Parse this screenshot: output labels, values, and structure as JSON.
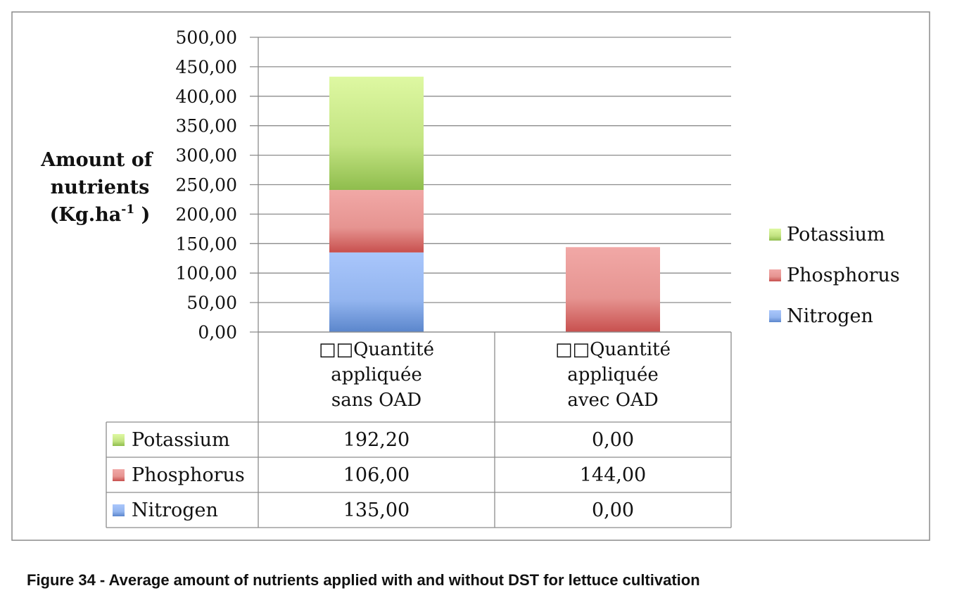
{
  "chart_data": {
    "type": "bar",
    "stacked": true,
    "ylabel_lines": [
      "Amount of",
      "nutrients",
      "(Kg.ha"
    ],
    "ylabel_sup": "-1",
    "ylabel_close": " )",
    "ylim": [
      0,
      500
    ],
    "yticks": [
      "0,00",
      "50,00",
      "100,00",
      "150,00",
      "200,00",
      "250,00",
      "300,00",
      "350,00",
      "400,00",
      "450,00",
      "500,00"
    ],
    "grid": true,
    "legend_position": "right",
    "categories": [
      [
        "□□Quantité",
        "appliquée",
        "sans OAD"
      ],
      [
        "□□Quantité",
        "appliquée",
        "avec OAD"
      ]
    ],
    "series": [
      {
        "name": "Nitrogen",
        "values": [
          135.0,
          0.0
        ],
        "value_labels": [
          "135,00",
          "0,00"
        ],
        "color": "#8fb4f0"
      },
      {
        "name": "Phosphorus",
        "values": [
          106.0,
          144.0
        ],
        "value_labels": [
          "106,00",
          "144,00"
        ],
        "color": "#ec9a98"
      },
      {
        "name": "Potassium",
        "values": [
          192.2,
          0.0
        ],
        "value_labels": [
          "192,20",
          "0,00"
        ],
        "color": "#c6e88a"
      }
    ]
  },
  "caption": "Figure 34 - Average amount of nutrients applied with and without DST for lettuce cultivation"
}
